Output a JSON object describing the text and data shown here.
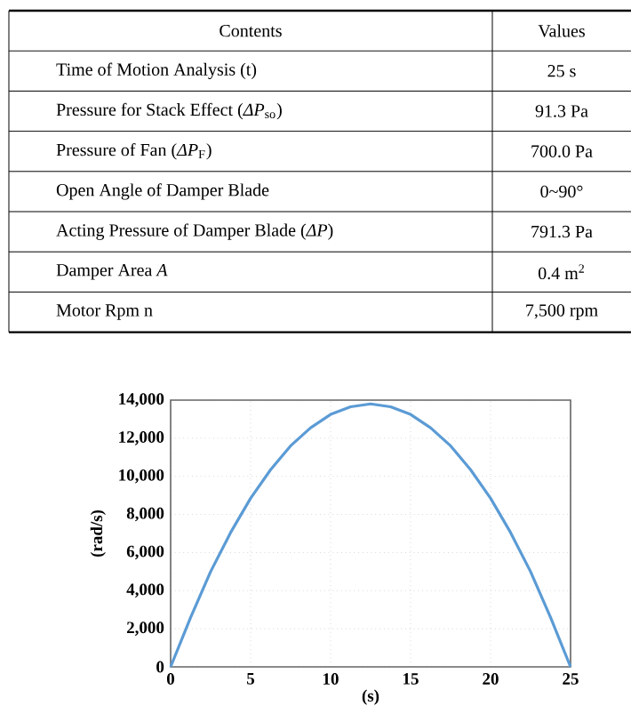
{
  "chart_data": [
    {
      "type": "other",
      "annotations": [
        "Contents",
        "Values",
        "Time of Motion Analysis (t)",
        "25 s",
        "Pressure for Stack Effect (*ΔP*$_{so}$)",
        "91.3 Pa",
        "Pressure of Fan (*ΔP*$_{F}$)",
        "700.0 Pa",
        "Open Angle of Damper Blade",
        "0~90°",
        "Acting Pressure of Damper Blade (*ΔP*)",
        "791.3 Pa",
        "Damper Area *A*",
        "0.4 m$^{2}$",
        "Motor Rpm n",
        "7,500 rpm"
      ]
    },
    {
      "type": "line",
      "xlabel": "(s)",
      "ylabel": "(rad/s)",
      "color": "#5b9bd5",
      "grid": true,
      "x": [
        0,
        1.25,
        2.5,
        3.75,
        5,
        6.25,
        7.5,
        8.75,
        10,
        11.25,
        12.5,
        13.75,
        15,
        16.25,
        17.5,
        18.75,
        20,
        21.25,
        22.5,
        23.75,
        25
      ],
      "values": [
        0,
        2600,
        5000,
        7050,
        8850,
        10350,
        11600,
        12550,
        13250,
        13650,
        13800,
        13650,
        13250,
        12550,
        11600,
        10350,
        8850,
        7050,
        5000,
        2600,
        0
      ],
      "xlim": [
        0,
        25
      ],
      "ylim": [
        0,
        14000
      ],
      "xticks": [
        0,
        5,
        10,
        15,
        20,
        25
      ],
      "yticks": [
        0,
        {
          "value": 2000,
          "label": "2,000"
        },
        {
          "value": 4000,
          "label": "4,000"
        },
        {
          "value": 6000,
          "label": "6,000"
        },
        {
          "value": 8000,
          "label": "8,000"
        },
        {
          "value": 10000,
          "label": "10,000"
        },
        {
          "value": 12000,
          "label": "12,000"
        },
        {
          "value": 14000,
          "label": "14,000"
        }
      ]
    }
  ]
}
